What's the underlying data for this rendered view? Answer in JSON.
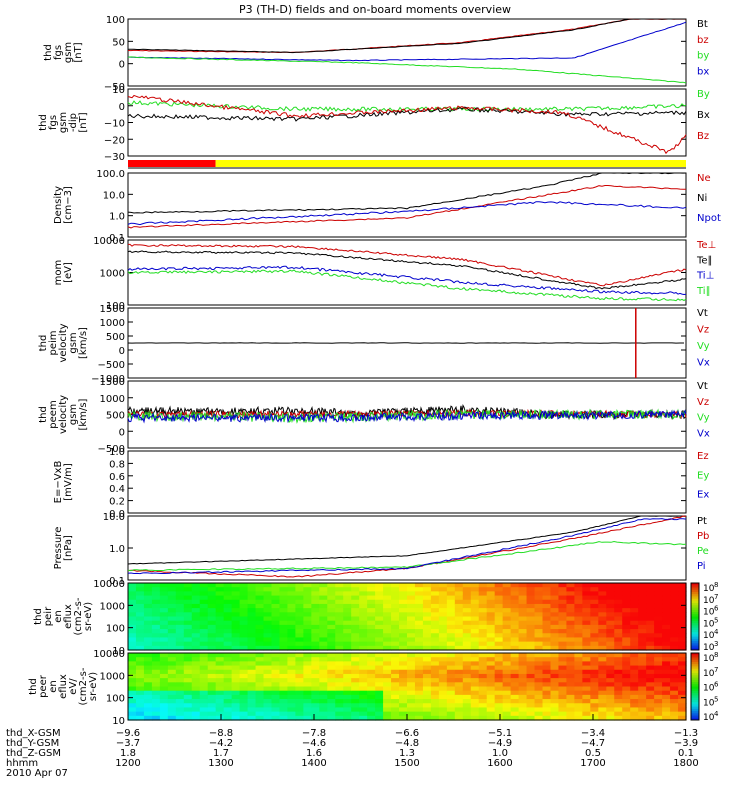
{
  "title": "P3 (TH-D) fields and on-board moments overview",
  "colors": {
    "black": "#000000",
    "red": "#cc0000",
    "green": "#22dd22",
    "blue": "#0000cc",
    "yellow": "#ffff00",
    "redbar": "#ff0000"
  },
  "chart_data": [
    {
      "type": "line",
      "ylabel": [
        "thd",
        "fgs",
        "gsm",
        "[nT]"
      ],
      "yticks": [
        "100",
        "50",
        "0",
        "−50"
      ],
      "ylim": [
        -65,
        100
      ],
      "series": [
        {
          "name": "Bt",
          "color": "black"
        },
        {
          "name": "bz",
          "color": "red"
        },
        {
          "name": "by",
          "color": "green"
        },
        {
          "name": "bx",
          "color": "blue"
        }
      ]
    },
    {
      "type": "line",
      "ylabel": [
        "thd",
        "fgs",
        "gsm",
        "-dip",
        "[nT]"
      ],
      "yticks": [
        "10",
        "0",
        "−10",
        "−20",
        "−30"
      ],
      "ylim": [
        -35,
        12
      ],
      "series": [
        {
          "name": "By",
          "color": "green"
        },
        {
          "name": "Bx",
          "color": "black"
        },
        {
          "name": "Bz",
          "color": "red"
        }
      ]
    },
    {
      "type": "bar",
      "description": "mode bar",
      "segments": [
        {
          "from": "1200",
          "to": "1330",
          "color": "redbar"
        },
        {
          "from": "1330",
          "to": "1800",
          "color": "yellow"
        }
      ]
    },
    {
      "type": "line",
      "ylabel": [
        "Density",
        "[cm−3]"
      ],
      "yticks": [
        "100.0",
        "10.0",
        "1.0",
        "0.1"
      ],
      "log": true,
      "series": [
        {
          "name": "Ne",
          "color": "red"
        },
        {
          "name": "Ni",
          "color": "black"
        },
        {
          "name": "Npot",
          "color": "blue"
        }
      ]
    },
    {
      "type": "line",
      "ylabel": [
        "mom",
        "[eV]"
      ],
      "yticks": [
        "10000",
        "1000",
        "100"
      ],
      "log": true,
      "series": [
        {
          "name": "Te⊥",
          "color": "red"
        },
        {
          "name": "Te∥",
          "color": "black"
        },
        {
          "name": "Ti⊥",
          "color": "blue"
        },
        {
          "name": "Ti∥",
          "color": "green"
        }
      ]
    },
    {
      "type": "line",
      "ylabel": [
        "thd",
        "peim",
        "velocity",
        "gsm",
        "[km/s]"
      ],
      "yticks": [
        "1500",
        "1000",
        "500",
        "0",
        "−500",
        "−1000"
      ],
      "series": [
        {
          "name": "Vt",
          "color": "black"
        },
        {
          "name": "Vz",
          "color": "red"
        },
        {
          "name": "Vy",
          "color": "green"
        },
        {
          "name": "Vx",
          "color": "blue"
        }
      ]
    },
    {
      "type": "line",
      "ylabel": [
        "thd",
        "peem",
        "velocity",
        "gsm",
        "[km/s]"
      ],
      "yticks": [
        "1500",
        "1000",
        "500",
        "0",
        "−500"
      ],
      "series": [
        {
          "name": "Vt",
          "color": "black"
        },
        {
          "name": "Vz",
          "color": "red"
        },
        {
          "name": "Vy",
          "color": "green"
        },
        {
          "name": "Vx",
          "color": "blue"
        }
      ]
    },
    {
      "type": "line",
      "ylabel": [
        "E=−VxB",
        "[mV/m]"
      ],
      "yticks": [
        "1.0",
        "0.8",
        "0.6",
        "0.4",
        "0.2",
        "0.0"
      ],
      "series": [
        {
          "name": "Ez",
          "color": "red"
        },
        {
          "name": "Ey",
          "color": "green"
        },
        {
          "name": "Ex",
          "color": "blue"
        }
      ]
    },
    {
      "type": "line",
      "ylabel": [
        "Pressure",
        "[nPa]"
      ],
      "yticks": [
        "10.0",
        "1.0",
        "0.1"
      ],
      "log": true,
      "series": [
        {
          "name": "Pt",
          "color": "black"
        },
        {
          "name": "Pb",
          "color": "red"
        },
        {
          "name": "Pe",
          "color": "green"
        },
        {
          "name": "Pi",
          "color": "blue"
        }
      ]
    },
    {
      "type": "heatmap",
      "ylabel": [
        "thd",
        "peir",
        "en",
        "eflux",
        "(cm2-s-",
        "sr-eV)"
      ],
      "yticks": [
        "10000",
        "1000",
        "100",
        "10"
      ],
      "colorbar": [
        "10",
        "10",
        "10",
        "10",
        "10",
        "10"
      ],
      "colorbar_exp": [
        "8",
        "7",
        "6",
        "5",
        "4",
        "3"
      ]
    },
    {
      "type": "heatmap",
      "ylabel": [
        "thd",
        "peer",
        "en",
        "eflux",
        "eV/",
        "(cm2-s-",
        "sr-eV)"
      ],
      "yticks": [
        "10000",
        "1000",
        "100",
        "10"
      ],
      "colorbar": [
        "10",
        "10",
        "10",
        "10",
        "10"
      ],
      "colorbar_exp": [
        "8",
        "7",
        "6",
        "5",
        "4"
      ]
    }
  ],
  "xaxis": {
    "rows": [
      {
        "label": "thd_X-GSM",
        "values": [
          "−9.6",
          "−8.8",
          "−7.8",
          "−6.6",
          "−5.1",
          "−3.4",
          "−1.3"
        ]
      },
      {
        "label": "thd_Y-GSM",
        "values": [
          "−3.7",
          "−4.2",
          "−4.6",
          "−4.8",
          "−4.9",
          "−4.7",
          "−3.9"
        ]
      },
      {
        "label": "thd_Z-GSM",
        "values": [
          "1.8",
          "1.7",
          "1.6",
          "1.3",
          "1.0",
          "0.5",
          "0.1"
        ]
      },
      {
        "label": "hhmm",
        "values": [
          "1200",
          "1300",
          "1400",
          "1500",
          "1600",
          "1700",
          "1800"
        ]
      }
    ],
    "date": "2010 Apr 07"
  }
}
